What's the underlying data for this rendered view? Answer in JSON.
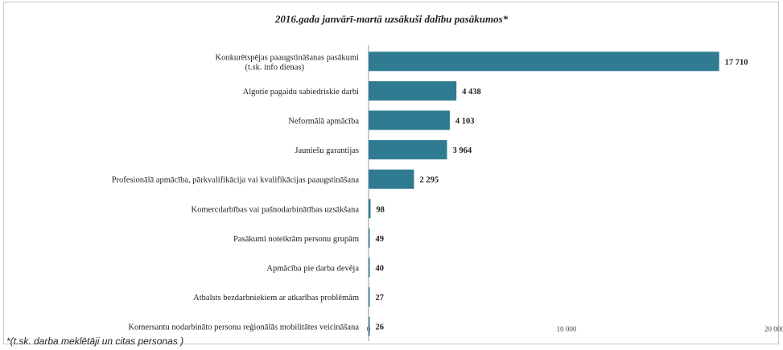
{
  "chart_data": {
    "type": "bar",
    "orientation": "horizontal",
    "title": "2016.gada janvārī-martā uzsākuši dalību pasākumos*",
    "footnote": "*(t.sk. darba meklētāji un citas personas )",
    "categories": [
      [
        "Konkurētspējas paaugstināšanas pasākumi",
        "(t.sk. info dienas)"
      ],
      [
        "Algotie pagaidu sabiedriskie darbi"
      ],
      [
        "Neformālā apmācība"
      ],
      [
        "Jauniešu garantijas"
      ],
      [
        "Profesionālā apmācība, pārkvalifikācija vai kvalifikācijas paaugstināšana"
      ],
      [
        "Komercdarbības vai pašnodarbinātības uzsākšana"
      ],
      [
        "Pasākumi noteiktām personu grupām"
      ],
      [
        "Apmācība pie darba devēja"
      ],
      [
        "Atbalsts bezdarbniekiem ar atkarības problēmām"
      ],
      [
        "Komersantu nodarbināto personu reģionālās mobilitātes veicināšana"
      ]
    ],
    "values": [
      17710,
      4438,
      4103,
      3964,
      2295,
      98,
      49,
      40,
      27,
      26
    ],
    "value_labels": [
      "17 710",
      "4 438",
      "4 103",
      "3 964",
      "2 295",
      "98",
      "49",
      "40",
      "27",
      "26"
    ],
    "xlim": [
      0,
      20000
    ],
    "xticks": [
      0,
      10000,
      20000
    ],
    "xtick_labels": [
      "0",
      "10 000",
      "20 000"
    ],
    "grid": false,
    "legend": "none",
    "bar_color": "#2e7b92"
  }
}
